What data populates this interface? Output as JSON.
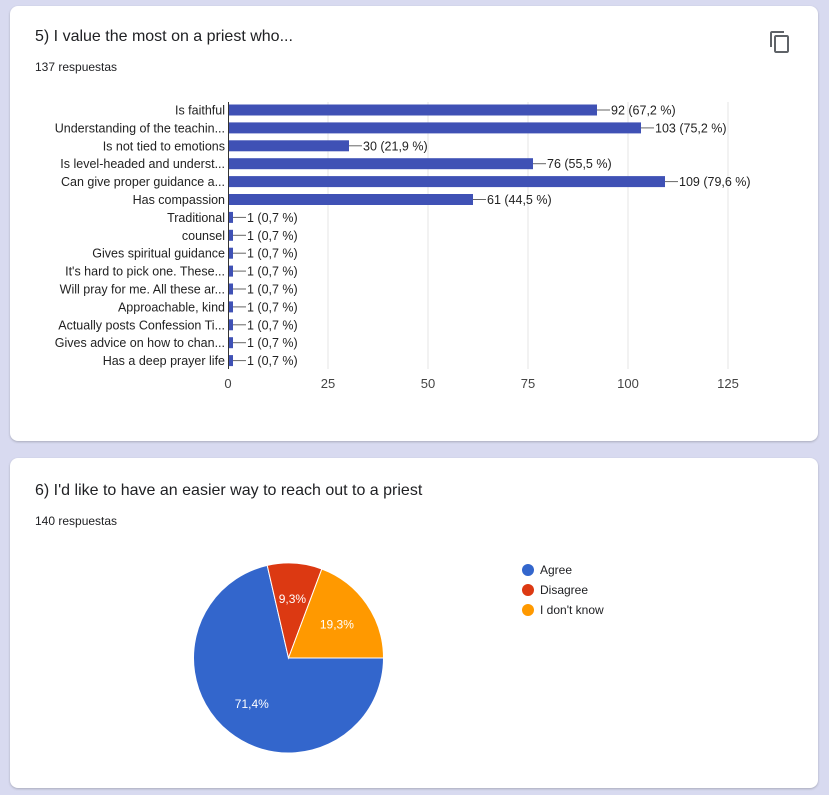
{
  "colors": {
    "accent": "#3f51b5",
    "agree": "#3366cc",
    "disagree": "#dc3912",
    "dontknow": "#ff9900"
  },
  "q5": {
    "title": "5) I value the most on a priest who...",
    "count": "137 respuestas",
    "copy_icon": "copy-icon"
  },
  "q6": {
    "title": "6) I'd like to have an easier way to reach out to a priest",
    "count": "140 respuestas"
  },
  "chart_data": [
    {
      "type": "bar",
      "orientation": "horizontal",
      "categories": [
        "Is faithful",
        "Understanding of the teachin...",
        "Is not tied to emotions",
        "Is level-headed and underst...",
        "Can give proper guidance a...",
        "Has compassion",
        "Traditional",
        "counsel",
        "Gives spiritual guidance",
        "It's hard to pick one. These...",
        "Will pray for me. All these ar...",
        "Approachable, kind",
        "Actually posts Confession Ti...",
        "Gives advice on how to chan...",
        "Has a deep prayer life"
      ],
      "values": [
        92,
        103,
        30,
        76,
        109,
        61,
        1,
        1,
        1,
        1,
        1,
        1,
        1,
        1,
        1
      ],
      "data_labels": [
        "92 (67,2 %)",
        "103 (75,2 %)",
        "30 (21,9 %)",
        "76 (55,5 %)",
        "109 (79,6 %)",
        "61 (44,5 %)",
        "1 (0,7 %)",
        "1 (0,7 %)",
        "1 (0,7 %)",
        "1 (0,7 %)",
        "1 (0,7 %)",
        "1 (0,7 %)",
        "1 (0,7 %)",
        "1 (0,7 %)",
        "1 (0,7 %)"
      ],
      "xticks": [
        "0",
        "25",
        "50",
        "75",
        "100",
        "125"
      ],
      "xlim": [
        0,
        125
      ],
      "grid": true
    },
    {
      "type": "pie",
      "labels": [
        "Agree",
        "Disagree",
        "I don't know"
      ],
      "values": [
        71.4,
        9.3,
        19.3
      ],
      "slice_labels": [
        "71,4%",
        "9,3%",
        "19,3%"
      ],
      "legend": "right"
    }
  ]
}
